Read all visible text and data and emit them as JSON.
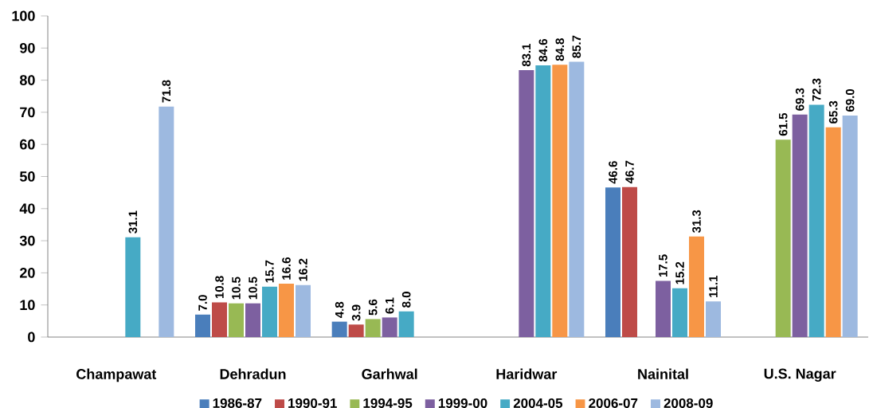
{
  "chart_data": {
    "type": "bar",
    "categories": [
      "Champawat",
      "Dehradun",
      "Garhwal",
      "Haridwar",
      "Nainital",
      "U.S. Nagar"
    ],
    "series": [
      {
        "name": "1986-87",
        "color": "#4a7ebb",
        "values": [
          null,
          7.0,
          4.8,
          null,
          46.6,
          null
        ],
        "value_labels": [
          null,
          "7.0",
          "4.8",
          null,
          "46.6",
          null
        ]
      },
      {
        "name": "1990-91",
        "color": "#be4b48",
        "values": [
          null,
          10.8,
          3.9,
          null,
          46.7,
          null
        ],
        "value_labels": [
          null,
          "10.8",
          "3.9",
          null,
          "46.7",
          null
        ]
      },
      {
        "name": "1994-95",
        "color": "#98b954",
        "values": [
          null,
          10.5,
          5.6,
          null,
          null,
          61.5
        ],
        "value_labels": [
          null,
          "10.5",
          "5.6",
          null,
          null,
          "61.5"
        ]
      },
      {
        "name": "1999-00",
        "color": "#7d60a0",
        "values": [
          null,
          10.5,
          6.1,
          83.1,
          17.5,
          69.3
        ],
        "value_labels": [
          null,
          "10.5",
          "6.1",
          "83.1",
          "17.5",
          "69.3"
        ]
      },
      {
        "name": "2004-05",
        "color": "#46aac5",
        "values": [
          31.1,
          15.7,
          8.0,
          84.6,
          15.2,
          72.3
        ],
        "value_labels": [
          "31.1",
          "15.7",
          "8.0",
          "84.6",
          "15.2",
          "72.3"
        ]
      },
      {
        "name": "2006-07",
        "color": "#f79646",
        "values": [
          null,
          16.6,
          null,
          84.8,
          31.3,
          65.3
        ],
        "value_labels": [
          null,
          "16.6",
          null,
          "84.8",
          "31.3",
          "65.3"
        ]
      },
      {
        "name": "2008-09",
        "color": "#9db9e0",
        "values": [
          71.8,
          16.2,
          null,
          85.7,
          11.1,
          69.0
        ],
        "value_labels": [
          "71.8",
          "16.2",
          null,
          "85.7",
          "11.1",
          "69.0"
        ]
      }
    ],
    "ylim": [
      0,
      100
    ],
    "yticks": [
      0,
      10,
      20,
      30,
      40,
      50,
      60,
      70,
      80,
      90,
      100
    ],
    "grid": false,
    "legend": "bottom"
  }
}
